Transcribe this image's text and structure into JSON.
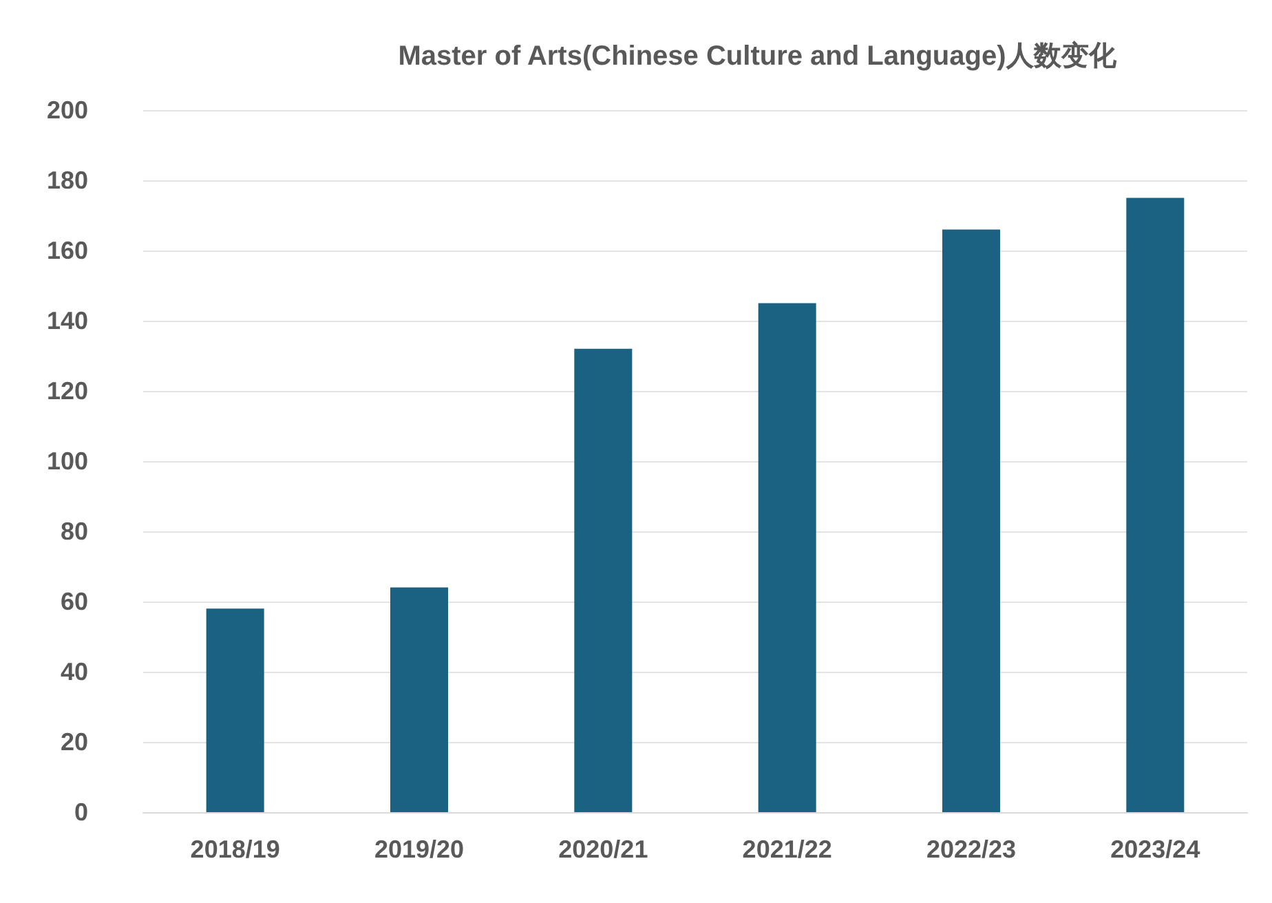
{
  "chart_data": {
    "type": "bar",
    "title": "Master of Arts(Chinese Culture and Language)人数变化",
    "categories": [
      "2018/19",
      "2019/20",
      "2020/21",
      "2021/22",
      "2022/23",
      "2023/24"
    ],
    "values": [
      58,
      64,
      132,
      145,
      166,
      175
    ],
    "color": "#1a6182",
    "ylim": [
      0,
      200
    ],
    "yticks": [
      0,
      20,
      40,
      60,
      80,
      100,
      120,
      140,
      160,
      180,
      200
    ],
    "grid": "y"
  }
}
